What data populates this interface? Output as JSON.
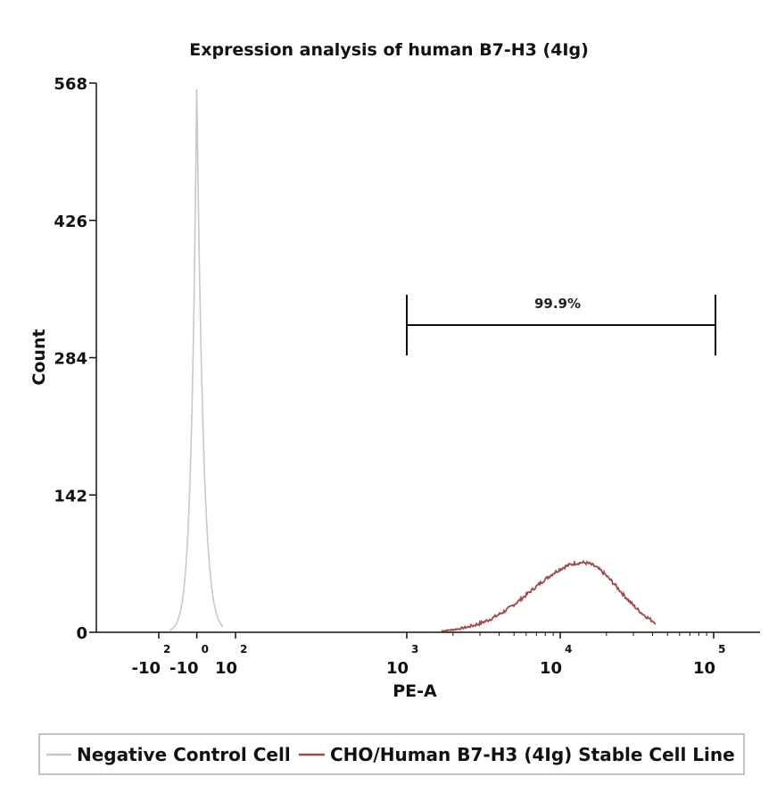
{
  "chart_data": {
    "type": "histogram",
    "title": "Expression analysis of human B7-H3 (4Ig)",
    "xlabel": "PE-A",
    "ylabel": "Count",
    "x_scale": "biexponential (log above ~10^2)",
    "y_ticks": [
      "0",
      "142",
      "284",
      "426",
      "568"
    ],
    "ylim": [
      0,
      568
    ],
    "x_ticks": [
      {
        "base": "-10",
        "exp": "2",
        "value": -100
      },
      {
        "base": "-10",
        "exp": "0",
        "value": -1
      },
      {
        "base": "10",
        "exp": "2",
        "value": 100
      },
      {
        "base": "10",
        "exp": "3",
        "value": 1000
      },
      {
        "base": "10",
        "exp": "4",
        "value": 10000
      },
      {
        "base": "10",
        "exp": "5",
        "value": 100000
      }
    ],
    "series": [
      {
        "name": "Negative Control Cell",
        "color": "#c8c8c8",
        "peak_x": -1,
        "peak_count": 568,
        "shape": "narrow peak near 0"
      },
      {
        "name": "CHO/Human B7-H3 (4Ig) Stable Cell Line",
        "color": "#a84444",
        "peak_x": 14000,
        "peak_count": 72,
        "shape": "broad peak centered near 1.4x10^4"
      }
    ],
    "gate": {
      "label": "99.9%",
      "x_start": 1200,
      "x_end": 120000
    }
  },
  "legend": {
    "items": [
      {
        "label": "Negative Control Cell",
        "color": "#c8c8c8"
      },
      {
        "label": "CHO/Human B7-H3 (4Ig) Stable Cell Line",
        "color": "#a84444"
      }
    ]
  }
}
